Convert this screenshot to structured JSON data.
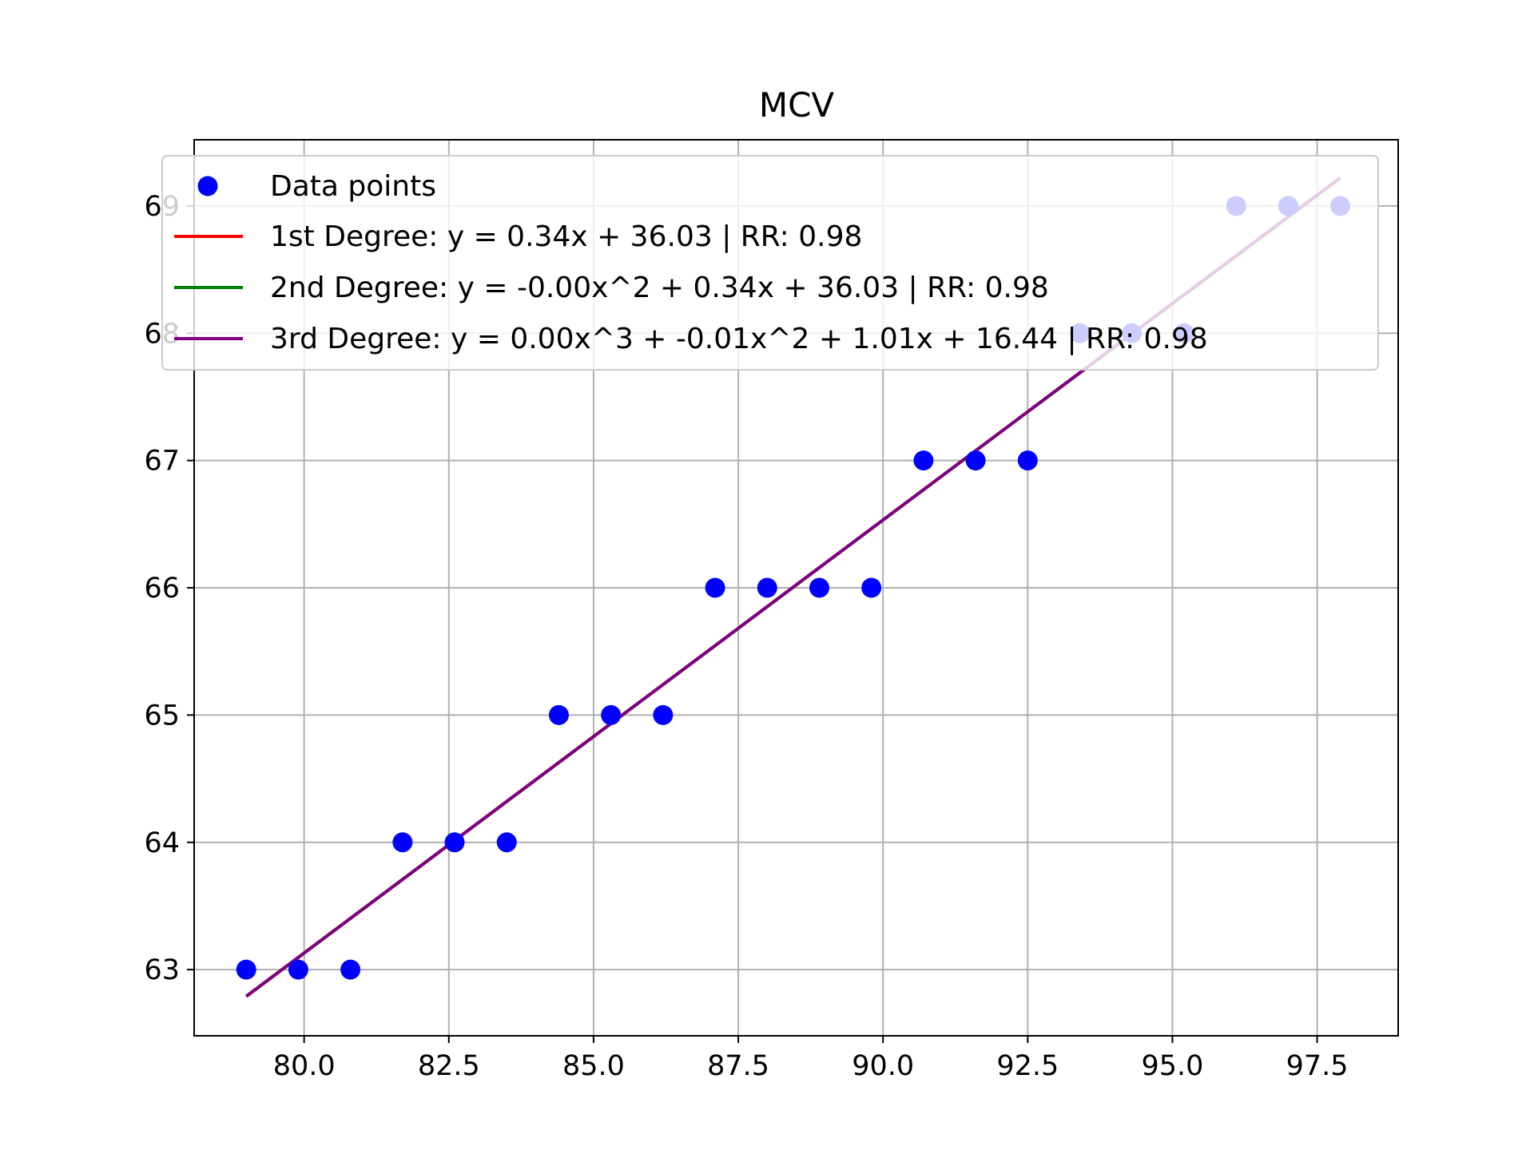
{
  "chart_data": {
    "type": "scatter",
    "title": "MCV",
    "xlabel": "",
    "ylabel": "",
    "xlim": [
      78.1,
      98.9
    ],
    "ylim": [
      62.48,
      69.52
    ],
    "xticks": [
      80.0,
      82.5,
      85.0,
      87.5,
      90.0,
      92.5,
      95.0,
      97.5
    ],
    "xtick_labels": [
      "80.0",
      "82.5",
      "85.0",
      "87.5",
      "90.0",
      "92.5",
      "95.0",
      "97.5"
    ],
    "yticks": [
      63,
      64,
      65,
      66,
      67,
      68,
      69
    ],
    "ytick_labels": [
      "63",
      "64",
      "65",
      "66",
      "67",
      "68",
      "69"
    ],
    "grid": true,
    "legend_position": "top-left",
    "colors": {
      "points": "#0000ff",
      "deg1": "#ff0000",
      "deg2": "#008000",
      "deg3": "#800080"
    },
    "points": {
      "name": "Data points",
      "x": [
        79.0,
        79.9,
        80.8,
        81.7,
        82.6,
        83.5,
        84.4,
        85.3,
        86.2,
        87.1,
        88.0,
        88.9,
        89.8,
        90.7,
        91.6,
        92.5,
        93.4,
        94.3,
        95.2,
        96.1,
        97.0,
        97.9
      ],
      "y": [
        63,
        63,
        63,
        64,
        64,
        64,
        65,
        65,
        65,
        66,
        66,
        66,
        66,
        67,
        67,
        67,
        68,
        68,
        68,
        69,
        69,
        69
      ]
    },
    "series": [
      {
        "name": "1st Degree: y = 0.34x + 36.03 | RR: 0.98",
        "coeffs": [
          0.34,
          36.03
        ]
      },
      {
        "name": "2nd Degree: y = -0.00x^2 + 0.34x + 36.03 | RR: 0.98",
        "coeffs": [
          0.0,
          0.34,
          36.03
        ]
      },
      {
        "name": "3rd Degree: y = 0.00x^3 + -0.01x^2 + 1.01x + 16.44 | RR: 0.98",
        "coeffs": [
          0.0,
          -0.01,
          1.01,
          16.44
        ]
      }
    ],
    "fit_x_range": [
      79.0,
      97.9
    ],
    "fit_y_range": [
      62.79,
      69.22
    ]
  }
}
